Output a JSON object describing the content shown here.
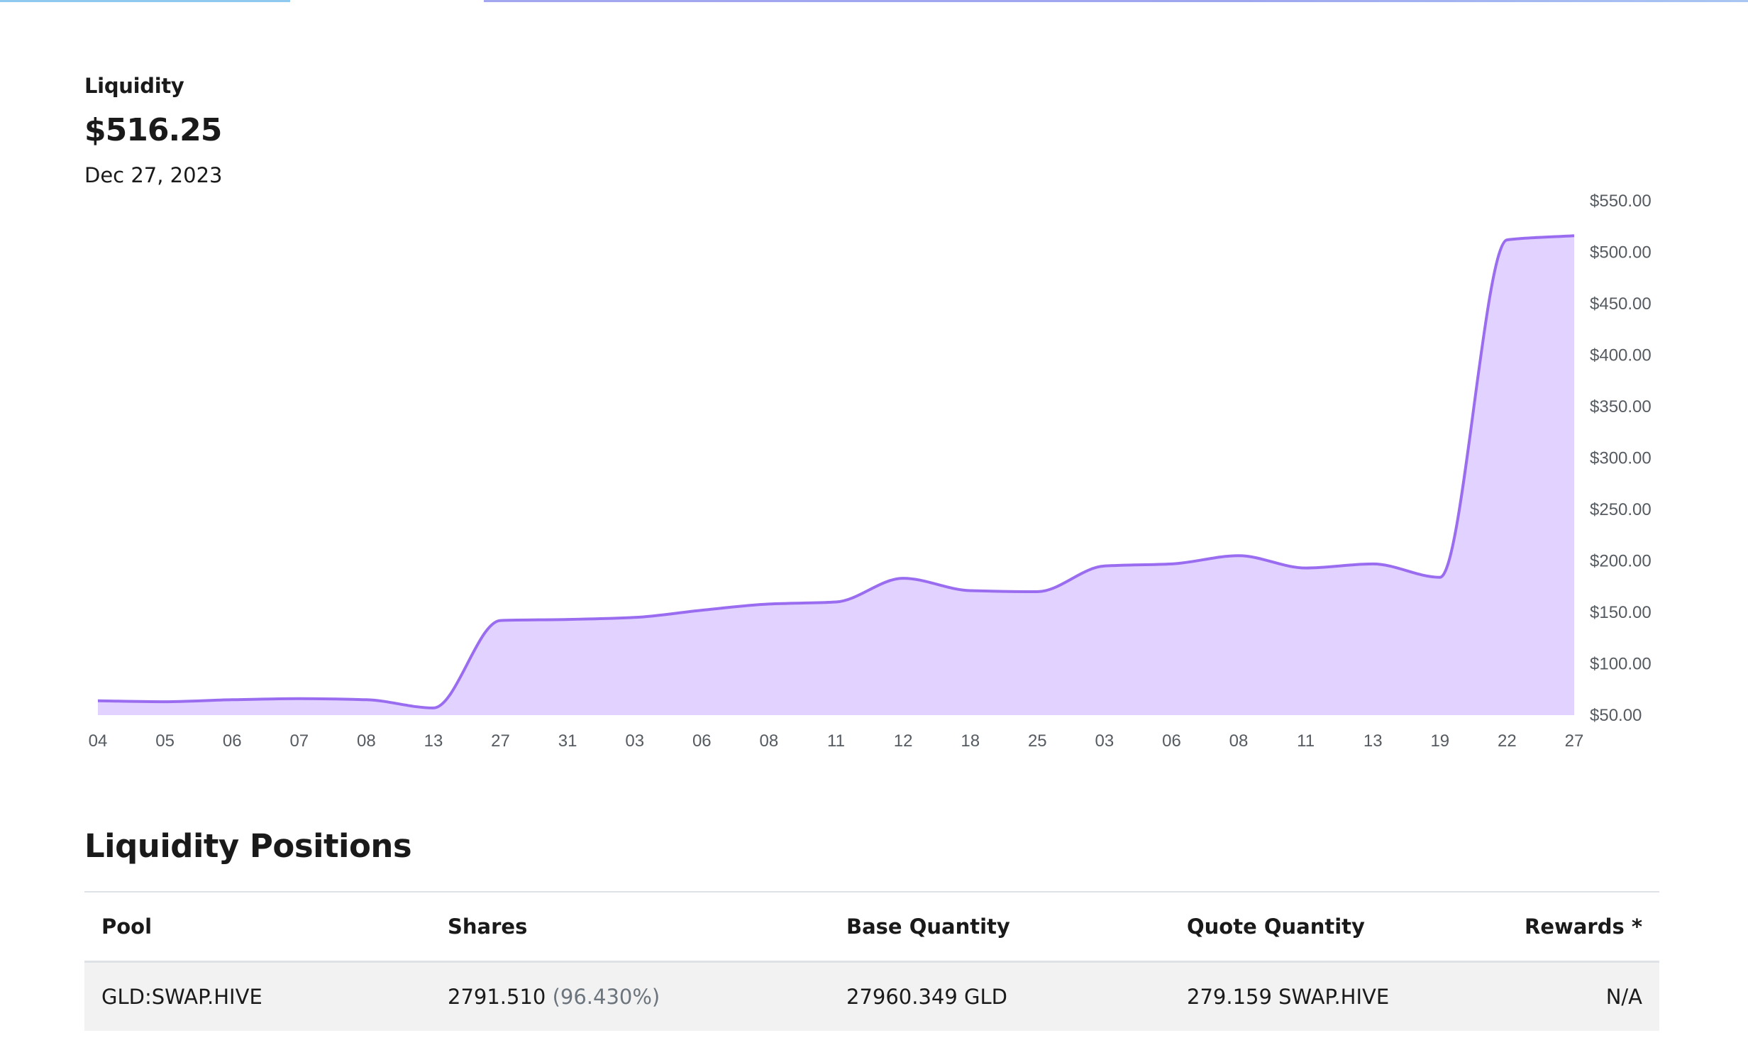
{
  "summary": {
    "label": "Liquidity",
    "value": "$516.25",
    "date": "Dec 27, 2023"
  },
  "chart_data": {
    "type": "area",
    "x": [
      "04",
      "05",
      "06",
      "07",
      "08",
      "13",
      "27",
      "31",
      "03",
      "06",
      "08",
      "11",
      "12",
      "18",
      "25",
      "03",
      "06",
      "08",
      "11",
      "13",
      "19",
      "22",
      "27"
    ],
    "values": [
      64,
      63,
      65,
      66,
      65,
      57,
      142,
      143,
      145,
      152,
      158,
      160,
      183,
      171,
      170,
      195,
      197,
      205,
      193,
      197,
      184,
      512,
      516
    ],
    "ylim": [
      50,
      550
    ],
    "yticks": [
      "$50.00",
      "$100.00",
      "$150.00",
      "$200.00",
      "$250.00",
      "$300.00",
      "$350.00",
      "$400.00",
      "$450.00",
      "$500.00",
      "$550.00"
    ],
    "y_axis_position": "right",
    "grid": false,
    "line_color": "#9a6cf0",
    "fill_color": "#e2d2ff"
  },
  "positions": {
    "title": "Liquidity Positions",
    "columns": [
      "Pool",
      "Shares",
      "Base Quantity",
      "Quote Quantity",
      "Rewards *"
    ],
    "rows": [
      {
        "pool": "GLD:SWAP.HIVE",
        "shares": "2791.510",
        "share_pct": "(96.430%)",
        "base": "27960.349 GLD",
        "quote": "279.159 SWAP.HIVE",
        "rewards": "N/A"
      }
    ]
  }
}
